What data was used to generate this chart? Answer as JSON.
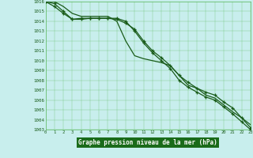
{
  "x": [
    0,
    1,
    2,
    3,
    4,
    5,
    6,
    7,
    8,
    9,
    10,
    11,
    12,
    13,
    14,
    15,
    16,
    17,
    18,
    19,
    20,
    21,
    22,
    23
  ],
  "line1": [
    1016.0,
    1015.8,
    1015.0,
    1014.2,
    1014.2,
    1014.3,
    1014.3,
    1014.3,
    1014.2,
    1013.8,
    1013.2,
    1012.0,
    1011.0,
    1010.3,
    1009.5,
    1008.5,
    1007.8,
    1007.2,
    1006.8,
    1006.5,
    1005.8,
    1005.2,
    1004.2,
    1003.2
  ],
  "line2": [
    1016.0,
    1015.5,
    1014.8,
    1014.2,
    1014.3,
    1014.3,
    1014.3,
    1014.3,
    1014.3,
    1014.0,
    1013.0,
    1011.8,
    1010.8,
    1010.0,
    1009.2,
    1008.0,
    1007.3,
    1006.8,
    1006.3,
    1006.0,
    1005.3,
    1004.6,
    1003.8,
    1003.0
  ],
  "line3": [
    1016.0,
    1016.0,
    1015.5,
    1014.8,
    1014.5,
    1014.5,
    1014.5,
    1014.5,
    1014.0,
    1012.0,
    1010.5,
    1010.2,
    1010.0,
    1009.8,
    1009.5,
    1008.5,
    1007.5,
    1007.2,
    1006.5,
    1006.2,
    1005.5,
    1004.8,
    1004.2,
    1003.5
  ],
  "line_color": "#1a5c1a",
  "bg_color": "#c8eeed",
  "grid_color": "#5cb85c",
  "label_bg": "#1a6b1a",
  "label_text": "#ffffff",
  "xlabel": "Graphe pression niveau de la mer (hPa)",
  "ylim_min": 1003,
  "ylim_max": 1016,
  "xlim_min": 0,
  "xlim_max": 23
}
